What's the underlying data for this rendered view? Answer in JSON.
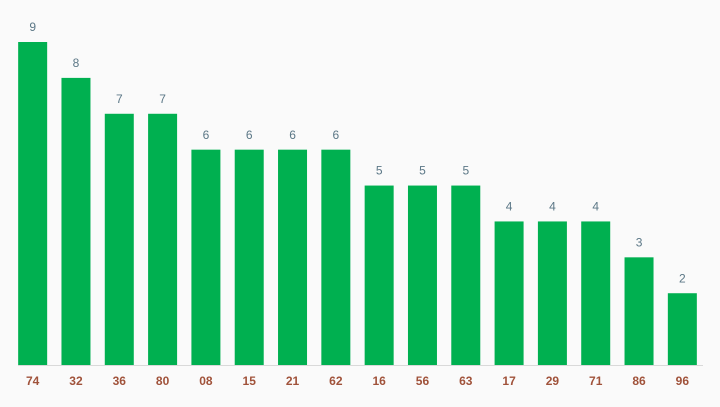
{
  "chart_data": {
    "type": "bar",
    "categories": [
      "74",
      "32",
      "36",
      "80",
      "08",
      "15",
      "21",
      "62",
      "16",
      "56",
      "63",
      "17",
      "29",
      "71",
      "86",
      "96"
    ],
    "values": [
      9,
      8,
      7,
      7,
      6,
      6,
      6,
      6,
      5,
      5,
      5,
      4,
      4,
      4,
      3,
      2
    ],
    "color": "#00b050"
  }
}
